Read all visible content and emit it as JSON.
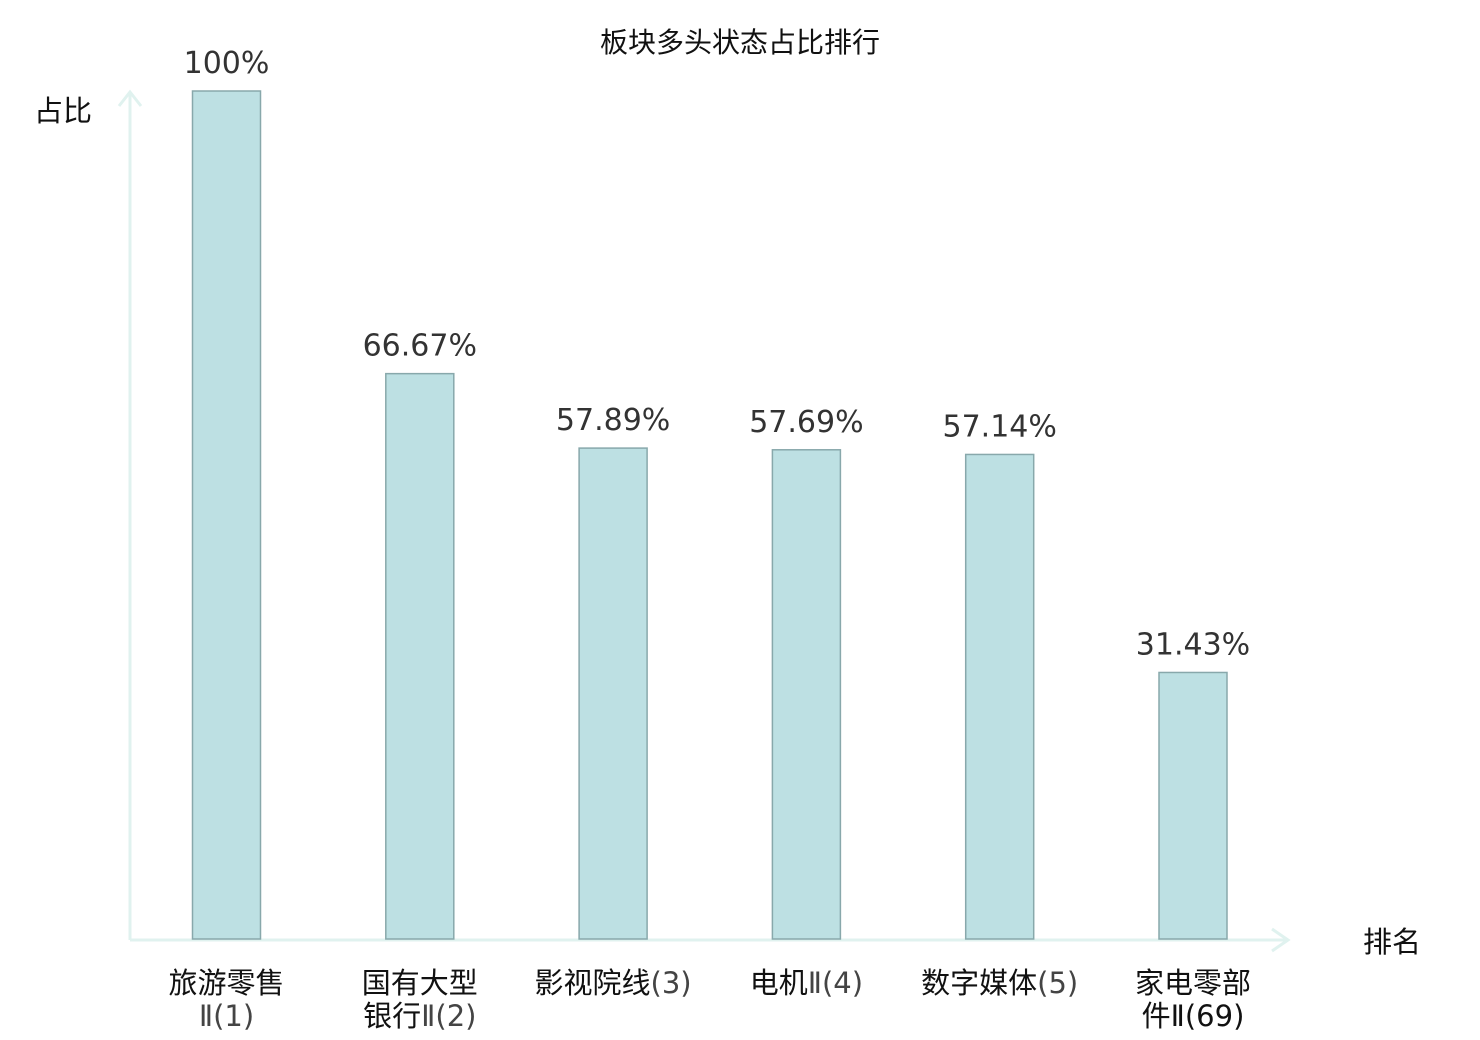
{
  "chart_data": {
    "type": "bar",
    "title": "板块多头状态占比排行",
    "ylabel": "占比",
    "xlabel": "排名",
    "ylim": [
      0,
      100
    ],
    "grid": false,
    "categories": [
      {
        "name_lines": [
          "旅游零售"
        ],
        "suffix": "Ⅱ(1)",
        "highlight": false
      },
      {
        "name_lines": [
          "国有大型",
          "银行"
        ],
        "suffix": "Ⅱ(2)",
        "highlight": false
      },
      {
        "name_lines": [
          "影视院线"
        ],
        "suffix": "(3)",
        "highlight": false,
        "inline": true
      },
      {
        "name_lines": [
          "电机"
        ],
        "suffix": "Ⅱ(4)",
        "highlight": false,
        "inline": true
      },
      {
        "name_lines": [
          "数字媒体"
        ],
        "suffix": "(5)",
        "highlight": false,
        "inline": true
      },
      {
        "name_lines": [
          "家电零部",
          "件"
        ],
        "suffix": "Ⅱ(69)",
        "highlight": true
      }
    ],
    "values": [
      100,
      66.67,
      57.89,
      57.69,
      57.14,
      31.43
    ],
    "value_labels": [
      "100%",
      "66.67%",
      "57.89%",
      "57.69%",
      "57.14%",
      "31.43%"
    ],
    "colors": {
      "bar_fill": "#bde0e3",
      "bar_stroke": "#88a8ab",
      "axis": "#e0f2ef",
      "highlight_text": "#e8141b"
    }
  }
}
